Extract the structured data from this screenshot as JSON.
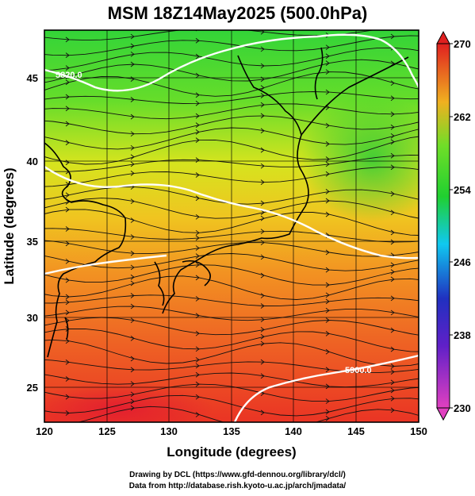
{
  "title": "MSM 18Z14May2025 (500.0hPa)",
  "map": {
    "lon_range": [
      120,
      150
    ],
    "lat_range": [
      22.5,
      47.8
    ],
    "x_label": "Longitude (degrees)",
    "y_label": "Latitude  (degrees)",
    "x_ticks": [
      "120",
      "125",
      "130",
      "135",
      "140",
      "145",
      "150"
    ],
    "y_ticks": [
      "25",
      "30",
      "35",
      "40",
      "45"
    ],
    "grid": true,
    "field_color_scale": [
      "#e040c0",
      "#2020c0",
      "#10c8f0",
      "#20d030",
      "#e8e020",
      "#f07020",
      "#e02020"
    ]
  },
  "colorbar": {
    "ticks": [
      "230",
      "238",
      "246",
      "254",
      "262",
      "270"
    ],
    "range": [
      230,
      270
    ]
  },
  "contours": [
    {
      "label": "5820.0"
    },
    {
      "label": "5900.0"
    }
  ],
  "credits": {
    "line1": "Drawing by DCL (https://www.gfd-dennou.org/library/dcl/)",
    "line2": "Data from http://database.rish.kyoto-u.ac.jp/arch/jmadata/"
  }
}
